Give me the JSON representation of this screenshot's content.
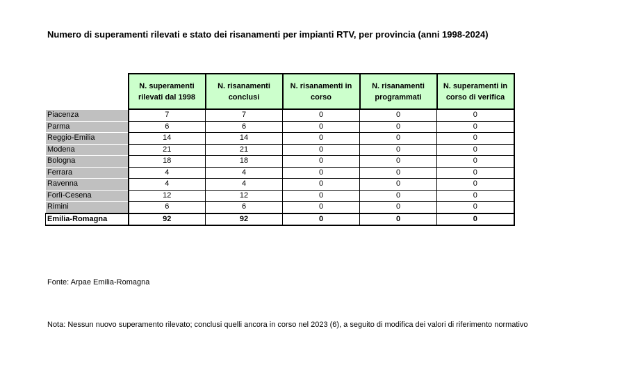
{
  "title": "Numero di superamenti rilevati e stato dei risanamenti per impianti RTV, per provincia (anni 1998-2024)",
  "table": {
    "header": [
      "N. superamenti rilevati dal 1998",
      "N. risanamenti conclusi",
      "N. risanamenti in corso",
      "N. risanamenti programmati",
      "N. superamenti in corso di verifica"
    ],
    "rows": [
      [
        "Piacenza",
        7,
        7,
        0,
        0,
        0
      ],
      [
        "Parma",
        6,
        6,
        0,
        0,
        0
      ],
      [
        "Reggio-Emilia",
        14,
        14,
        0,
        0,
        0
      ],
      [
        "Modena",
        21,
        21,
        0,
        0,
        0
      ],
      [
        "Bologna",
        18,
        18,
        0,
        0,
        0
      ],
      [
        "Ferrara",
        4,
        4,
        0,
        0,
        0
      ],
      [
        "Ravenna",
        4,
        4,
        0,
        0,
        0
      ],
      [
        "Forlì-Cesena",
        12,
        12,
        0,
        0,
        0
      ],
      [
        "Rimini",
        6,
        6,
        0,
        0,
        0
      ]
    ],
    "total": [
      "Emilia-Romagna",
      92,
      92,
      0,
      0,
      0
    ]
  },
  "source": "Fonte: Arpae Emilia-Romagna",
  "note": "Nota: Nessun nuovo superamento rilevato; conclusi quelli ancora in corso nel 2023 (6), a seguito di modifica dei valori di riferimento normativo"
}
